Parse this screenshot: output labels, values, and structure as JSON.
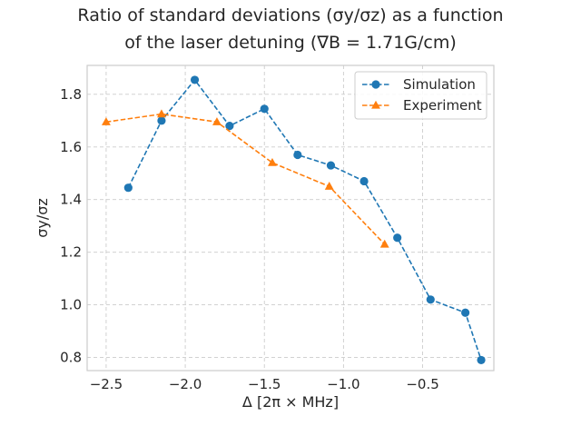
{
  "chart_data": {
    "type": "line",
    "title_line1": "Ratio of standard deviations (σy/σz) as a function",
    "title_line2": "of the laser detuning (∇B = 1.71G/cm)",
    "xlabel": "Δ [2π × MHz]",
    "ylabel": "σy/σz",
    "xlim": [
      -2.62,
      -0.05
    ],
    "ylim": [
      0.75,
      1.91
    ],
    "xticks": [
      -2.5,
      -2.0,
      -1.5,
      -1.0,
      -0.5
    ],
    "xtick_labels": [
      "−2.5",
      "−2.0",
      "−1.5",
      "−1.0",
      "−0.5"
    ],
    "yticks": [
      0.8,
      1.0,
      1.2,
      1.4,
      1.6,
      1.8
    ],
    "ytick_labels": [
      "0.8",
      "1.0",
      "1.2",
      "1.4",
      "1.6",
      "1.8"
    ],
    "grid": true,
    "legend_position": "top-right",
    "series": [
      {
        "name": "Simulation",
        "color": "#1f77b4",
        "marker": "circle",
        "linestyle": "dashed",
        "x": [
          -2.36,
          -2.15,
          -1.94,
          -1.72,
          -1.5,
          -1.29,
          -1.08,
          -0.87,
          -0.66,
          -0.45,
          -0.23,
          -0.13
        ],
        "y": [
          1.445,
          1.7,
          1.855,
          1.68,
          1.745,
          1.57,
          1.53,
          1.47,
          1.255,
          1.02,
          0.97,
          0.79
        ]
      },
      {
        "name": "Experiment",
        "color": "#ff7f0e",
        "marker": "triangle",
        "linestyle": "dashed",
        "x": [
          -2.5,
          -2.15,
          -1.8,
          -1.45,
          -1.09,
          -0.74
        ],
        "y": [
          1.695,
          1.725,
          1.695,
          1.54,
          1.45,
          1.23
        ]
      }
    ]
  }
}
